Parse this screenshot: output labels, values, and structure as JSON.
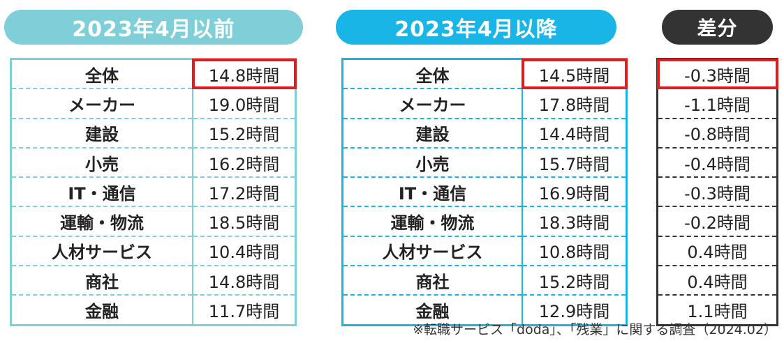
{
  "headers": {
    "before": "2023年4月以前",
    "after": "2023年4月以降",
    "diff": "差分"
  },
  "chart_data": {
    "type": "table",
    "columns": [
      "2023年4月以前",
      "2023年4月以降",
      "差分"
    ],
    "rows": [
      {
        "category": "全体",
        "before": "14.8時間",
        "after": "14.5時間",
        "diff": "-0.3時間",
        "highlight": true
      },
      {
        "category": "メーカー",
        "before": "19.0時間",
        "after": "17.8時間",
        "diff": "-1.1時間"
      },
      {
        "category": "建設",
        "before": "15.2時間",
        "after": "14.4時間",
        "diff": "-0.8時間"
      },
      {
        "category": "小売",
        "before": "16.2時間",
        "after": "15.7時間",
        "diff": "-0.4時間"
      },
      {
        "category": "IT・通信",
        "before": "17.2時間",
        "after": "16.9時間",
        "diff": "-0.3時間"
      },
      {
        "category": "運輸・物流",
        "before": "18.5時間",
        "after": "18.3時間",
        "diff": "-0.2時間"
      },
      {
        "category": "人材サービス",
        "before": "10.4時間",
        "after": "10.8時間",
        "diff": "0.4時間"
      },
      {
        "category": "商社",
        "before": "14.8時間",
        "after": "15.2時間",
        "diff": "0.4時間"
      },
      {
        "category": "金融",
        "before": "11.7時間",
        "after": "12.9時間",
        "diff": "1.1時間"
      }
    ],
    "colors": {
      "before": "#7fcfd9",
      "after": "#1ab5e7",
      "diff": "#333333",
      "highlight": "#e01c1c"
    }
  },
  "footnote": "※転職サービス「doda」、「残業」に関する調査（2024.02）"
}
